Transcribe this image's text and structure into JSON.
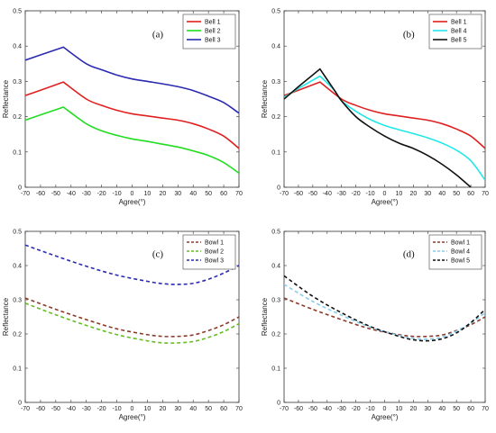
{
  "chart_data": [
    {
      "type": "line",
      "panel_label": "(a)",
      "xlabel": "Agree(°)",
      "ylabel": "Reflectance",
      "xlim": [
        -70,
        70
      ],
      "ylim": [
        0,
        0.5
      ],
      "xticks": [
        -70,
        -60,
        -50,
        -40,
        -30,
        -20,
        -10,
        0,
        10,
        20,
        30,
        40,
        50,
        60,
        70
      ],
      "yticks": [
        0,
        0.1,
        0.2,
        0.3,
        0.4,
        0.5
      ],
      "legend_position": "top-right",
      "series": [
        {
          "name": "Bell 1",
          "color": "#e02020",
          "dash": "solid",
          "x": [
            -70,
            -60,
            -45,
            -30,
            -20,
            -10,
            0,
            10,
            20,
            30,
            40,
            50,
            60,
            70
          ],
          "y": [
            0.26,
            0.275,
            0.298,
            0.25,
            0.232,
            0.218,
            0.208,
            0.202,
            0.196,
            0.19,
            0.18,
            0.165,
            0.145,
            0.11
          ]
        },
        {
          "name": "Bell 2",
          "color": "#22dd22",
          "dash": "solid",
          "x": [
            -70,
            -60,
            -45,
            -30,
            -20,
            -10,
            0,
            10,
            20,
            30,
            40,
            50,
            60,
            70
          ],
          "y": [
            0.19,
            0.205,
            0.227,
            0.18,
            0.16,
            0.147,
            0.137,
            0.13,
            0.122,
            0.114,
            0.103,
            0.09,
            0.07,
            0.04
          ]
        },
        {
          "name": "Bell 3",
          "color": "#2a2ab0",
          "dash": "solid",
          "x": [
            -70,
            -60,
            -45,
            -30,
            -20,
            -10,
            0,
            10,
            20,
            30,
            40,
            50,
            60,
            70
          ],
          "y": [
            0.36,
            0.375,
            0.397,
            0.35,
            0.333,
            0.318,
            0.307,
            0.3,
            0.293,
            0.285,
            0.274,
            0.258,
            0.24,
            0.21
          ]
        }
      ]
    },
    {
      "type": "line",
      "panel_label": "(b)",
      "xlabel": "Agree(°)",
      "ylabel": "Reflectance",
      "xlim": [
        -70,
        70
      ],
      "ylim": [
        0,
        0.5
      ],
      "xticks": [
        -70,
        -60,
        -50,
        -40,
        -30,
        -20,
        -10,
        0,
        10,
        20,
        30,
        40,
        50,
        60,
        70
      ],
      "yticks": [
        0,
        0.1,
        0.2,
        0.3,
        0.4,
        0.5
      ],
      "legend_position": "top-right",
      "series": [
        {
          "name": "Bell 1",
          "color": "#e02020",
          "dash": "solid",
          "x": [
            -70,
            -60,
            -45,
            -30,
            -20,
            -10,
            0,
            10,
            20,
            30,
            40,
            50,
            60,
            70
          ],
          "y": [
            0.26,
            0.275,
            0.298,
            0.25,
            0.232,
            0.218,
            0.208,
            0.202,
            0.196,
            0.19,
            0.18,
            0.165,
            0.145,
            0.11
          ]
        },
        {
          "name": "Bell 4",
          "color": "#22e8e8",
          "dash": "solid",
          "x": [
            -70,
            -60,
            -45,
            -35,
            -30,
            -20,
            -10,
            0,
            10,
            20,
            30,
            40,
            50,
            60,
            70
          ],
          "y": [
            0.255,
            0.28,
            0.315,
            0.275,
            0.245,
            0.215,
            0.192,
            0.175,
            0.163,
            0.152,
            0.14,
            0.125,
            0.105,
            0.075,
            0.02
          ]
        },
        {
          "name": "Bell 5",
          "color": "#111111",
          "dash": "solid",
          "x": [
            -70,
            -60,
            -45,
            -35,
            -30,
            -20,
            -10,
            0,
            10,
            20,
            30,
            40,
            50,
            60
          ],
          "y": [
            0.25,
            0.285,
            0.335,
            0.275,
            0.245,
            0.2,
            0.17,
            0.145,
            0.125,
            0.11,
            0.09,
            0.065,
            0.035,
            0.0
          ]
        }
      ]
    },
    {
      "type": "line",
      "panel_label": "(c)",
      "xlabel": "Agree(°)",
      "ylabel": "Reflectance",
      "xlim": [
        -70,
        70
      ],
      "ylim": [
        0,
        0.5
      ],
      "xticks": [
        -70,
        -60,
        -50,
        -40,
        -30,
        -20,
        -10,
        0,
        10,
        20,
        30,
        40,
        50,
        60,
        70
      ],
      "yticks": [
        0,
        0.1,
        0.2,
        0.3,
        0.4,
        0.5
      ],
      "legend_position": "top-right",
      "series": [
        {
          "name": "Bowl 1",
          "color": "#8b3a2a",
          "dash": "dashed",
          "x": [
            -70,
            -50,
            -30,
            -10,
            10,
            20,
            30,
            40,
            50,
            60,
            70
          ],
          "y": [
            0.305,
            0.272,
            0.242,
            0.215,
            0.198,
            0.193,
            0.193,
            0.197,
            0.21,
            0.227,
            0.25
          ]
        },
        {
          "name": "Bowl 2",
          "color": "#66bb22",
          "dash": "dashed",
          "x": [
            -70,
            -50,
            -30,
            -10,
            10,
            20,
            30,
            40,
            50,
            60,
            70
          ],
          "y": [
            0.29,
            0.256,
            0.225,
            0.198,
            0.18,
            0.174,
            0.174,
            0.178,
            0.19,
            0.207,
            0.23
          ]
        },
        {
          "name": "Bowl 3",
          "color": "#2a2ab0",
          "dash": "dashed",
          "x": [
            -70,
            -50,
            -30,
            -10,
            10,
            20,
            30,
            40,
            50,
            60,
            70
          ],
          "y": [
            0.46,
            0.428,
            0.398,
            0.372,
            0.354,
            0.347,
            0.345,
            0.348,
            0.36,
            0.378,
            0.4
          ]
        }
      ]
    },
    {
      "type": "line",
      "panel_label": "(d)",
      "xlabel": "Agree(°)",
      "ylabel": "Reflectance",
      "xlim": [
        -70,
        70
      ],
      "ylim": [
        0,
        0.5
      ],
      "xticks": [
        -70,
        -60,
        -50,
        -40,
        -30,
        -20,
        -10,
        0,
        10,
        20,
        30,
        40,
        50,
        60,
        70
      ],
      "yticks": [
        0,
        0.1,
        0.2,
        0.3,
        0.4,
        0.5
      ],
      "legend_position": "top-right",
      "series": [
        {
          "name": "Bowl 1",
          "color": "#8b3a2a",
          "dash": "dashed",
          "x": [
            -70,
            -50,
            -30,
            -10,
            10,
            20,
            30,
            40,
            50,
            60,
            70
          ],
          "y": [
            0.305,
            0.272,
            0.242,
            0.215,
            0.198,
            0.193,
            0.193,
            0.197,
            0.21,
            0.227,
            0.25
          ]
        },
        {
          "name": "Bowl 4",
          "color": "#88ccee",
          "dash": "dashed",
          "x": [
            -70,
            -50,
            -30,
            -10,
            10,
            20,
            30,
            40,
            50,
            60,
            70
          ],
          "y": [
            0.345,
            0.295,
            0.255,
            0.22,
            0.196,
            0.187,
            0.185,
            0.191,
            0.208,
            0.232,
            0.262
          ]
        },
        {
          "name": "Bowl 5",
          "color": "#111111",
          "dash": "dashed",
          "x": [
            -70,
            -50,
            -30,
            -10,
            10,
            20,
            30,
            40,
            50,
            60,
            70
          ],
          "y": [
            0.37,
            0.31,
            0.262,
            0.222,
            0.193,
            0.183,
            0.18,
            0.186,
            0.203,
            0.233,
            0.272
          ]
        }
      ]
    }
  ]
}
